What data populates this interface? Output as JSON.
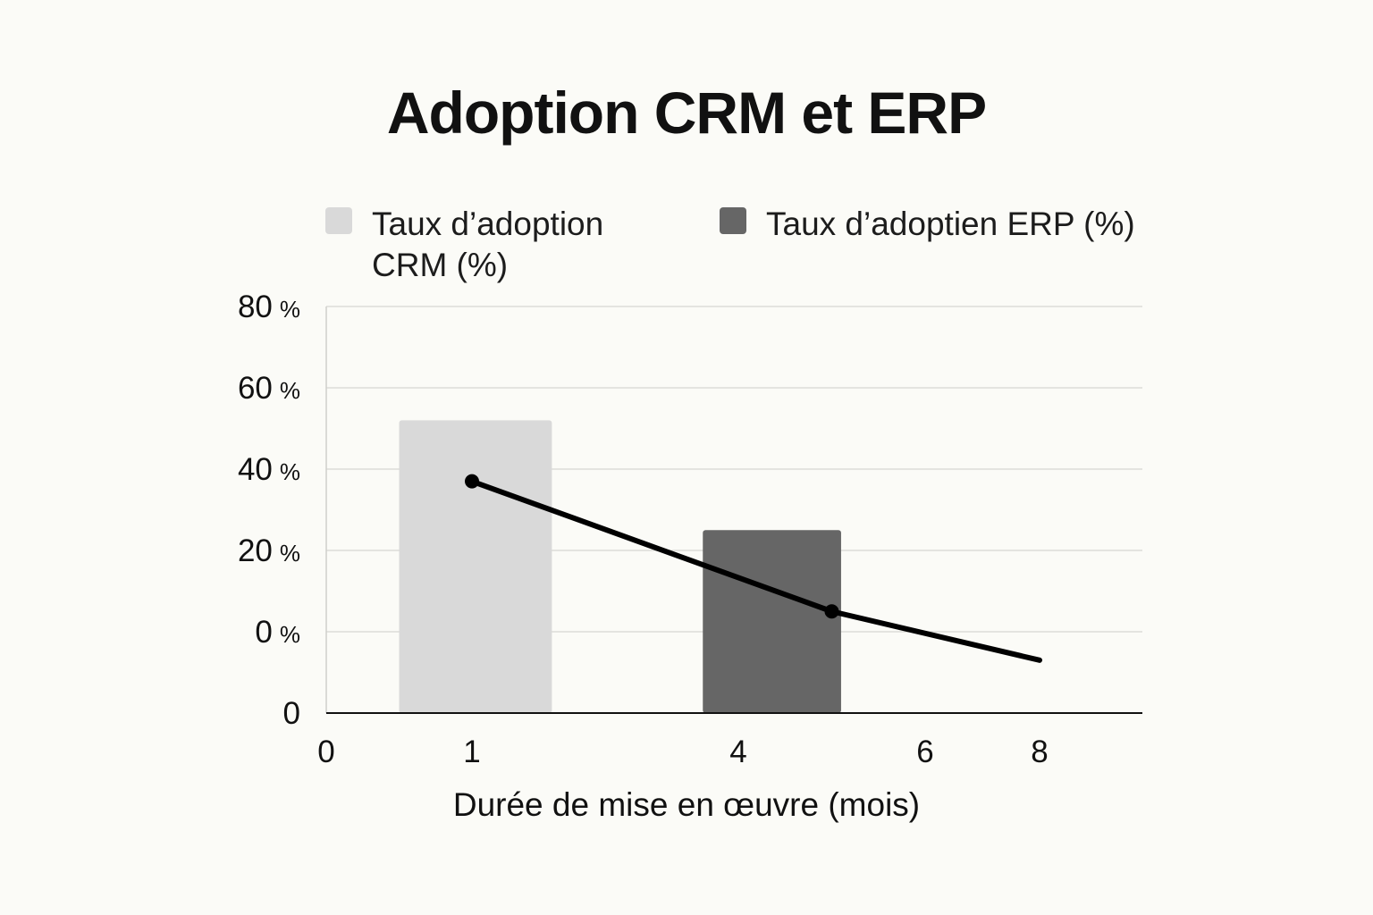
{
  "chart_data": {
    "type": "bar",
    "title": "Adoption CRM et ERP",
    "xlabel": "Durée de mise en œuvre (mois)",
    "ylabel": "",
    "x_ticks": [
      "0",
      "1",
      "4",
      "6",
      "8"
    ],
    "y_ticks": [
      {
        "num": "80",
        "unit": "%"
      },
      {
        "num": "60",
        "unit": "%"
      },
      {
        "num": "40",
        "unit": "%"
      },
      {
        "num": "20",
        "unit": "%"
      },
      {
        "num": "0",
        "unit": "%"
      },
      {
        "num": "0",
        "unit": ""
      }
    ],
    "grid": true,
    "legend_position": "top",
    "series": [
      {
        "name": "Taux d’adoption CRM (%)",
        "kind": "bar",
        "color": "#d9d9d9",
        "bars": [
          {
            "x_start": 0.5,
            "x_end": 1.9,
            "value": 72
          }
        ]
      },
      {
        "name": "Taux d’adoptien ERP (%)",
        "kind": "bar",
        "color": "#666666",
        "bars": [
          {
            "x_start": 3.6,
            "x_end": 5.1,
            "value": 45
          }
        ]
      },
      {
        "name": "",
        "kind": "line",
        "color": "#000000",
        "points": [
          {
            "x": 1.0,
            "y": 57,
            "marker": true
          },
          {
            "x": 5.0,
            "y": 25,
            "marker": true
          },
          {
            "x": 8.0,
            "y": 13,
            "marker": false
          }
        ]
      }
    ]
  }
}
